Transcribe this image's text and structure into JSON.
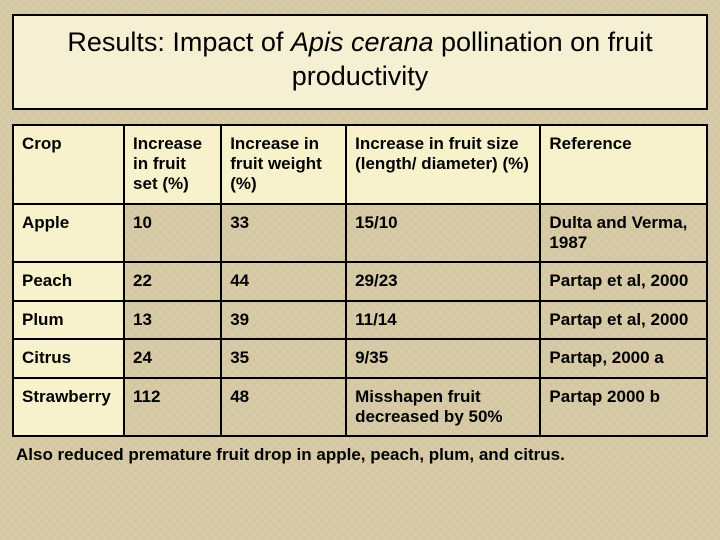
{
  "title_parts": {
    "pre": "Results: Impact of ",
    "italic": "Apis cerana",
    "post": " pollination on fruit productivity"
  },
  "table": {
    "columns": [
      "Crop",
      "Increase in fruit set (%)",
      "Increase in fruit weight (%)",
      "Increase in fruit size (length/ diameter) (%)",
      "Reference"
    ],
    "column_widths_pct": [
      16,
      14,
      18,
      28,
      24
    ],
    "rows": [
      {
        "crop": "Apple",
        "set": "10",
        "weight": "33",
        "size": "15/10",
        "ref": "Dulta and Verma, 1987"
      },
      {
        "crop": "Peach",
        "set": "22",
        "weight": "44",
        "size": "29/23",
        "ref": "Partap et al, 2000"
      },
      {
        "crop": "Plum",
        "set": "13",
        "weight": "39",
        "size": "11/14",
        "ref": "Partap et al, 2000"
      },
      {
        "crop": "Citrus",
        "set": "24",
        "weight": "35",
        "size": "9/35",
        "ref": "Partap, 2000 a"
      },
      {
        "crop": "Strawberry",
        "set": "112",
        "weight": "48",
        "size": "Misshapen fruit decreased by 50%",
        "ref": "Partap 2000 b"
      }
    ]
  },
  "footnote": "Also reduced premature fruit drop in apple, peach, plum, and citrus.",
  "style": {
    "background_color": "#d8cba8",
    "title_box_bg": "#f5f0d4",
    "header_cell_bg": "#f8f2cc",
    "crop_col_bg": "#f8f2cc",
    "border_color": "#000000",
    "text_color": "#000000",
    "title_font": "Comic Sans MS",
    "title_fontsize_pt": 20,
    "body_font": "Arial",
    "body_fontsize_pt": 13,
    "body_fontweight": "bold"
  }
}
